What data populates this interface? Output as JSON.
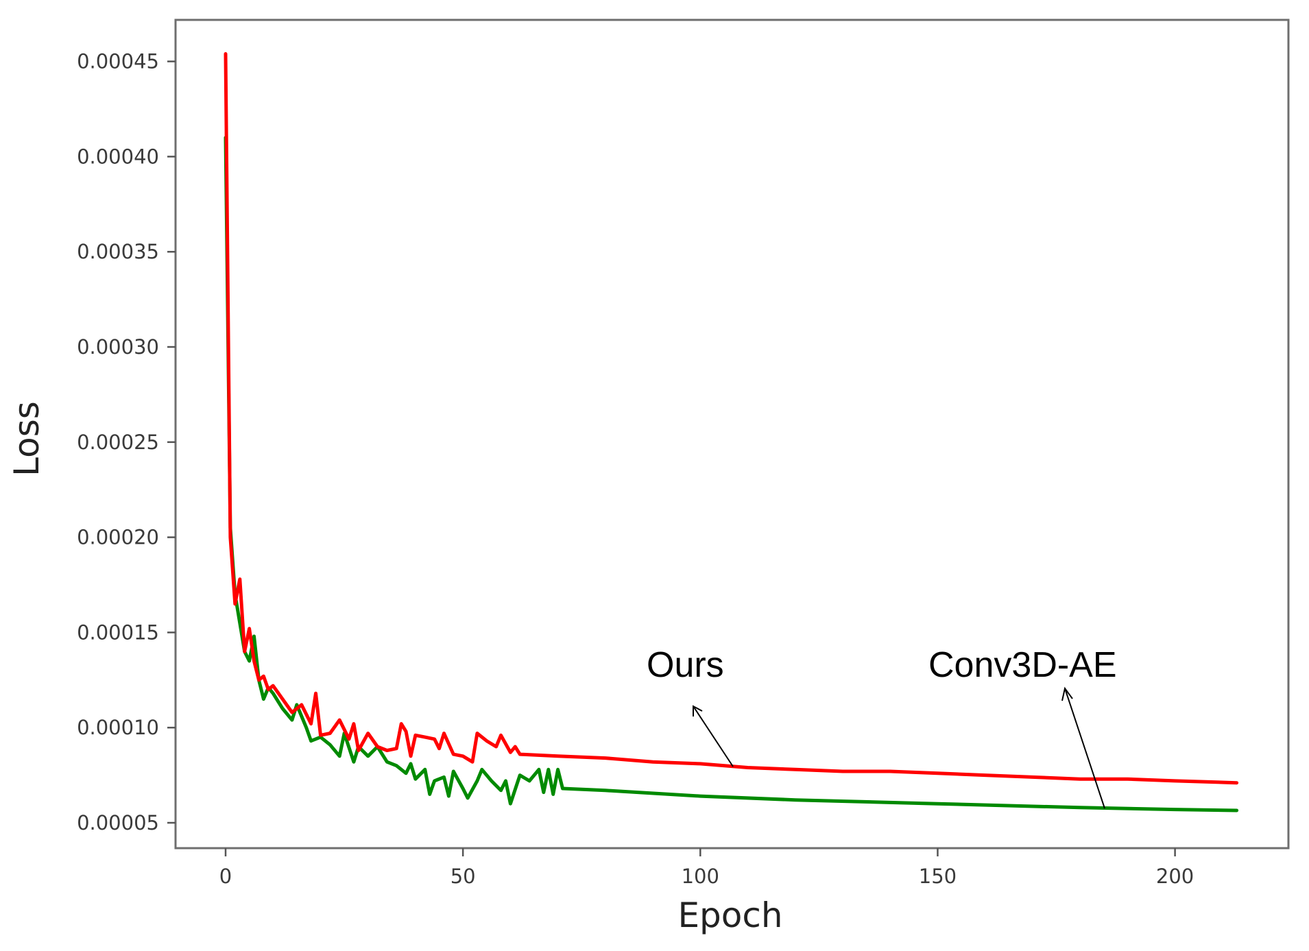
{
  "chart_data": {
    "type": "line",
    "title": "",
    "xlabel": "Epoch",
    "ylabel": "Loss",
    "xlim": [
      -11,
      223
    ],
    "ylim": [
      3.9e-05,
      0.000472
    ],
    "grid": false,
    "legend": "none (inline arrow annotations)",
    "x_ticks": [
      0,
      50,
      100,
      150,
      200
    ],
    "x_tick_labels": [
      "0",
      "50",
      "100",
      "150",
      "200"
    ],
    "y_ticks": [
      5e-05,
      0.0001,
      0.00015,
      0.0002,
      0.00025,
      0.0003,
      0.00035,
      0.0004,
      0.00045
    ],
    "y_tick_labels": [
      "0.00005",
      "0.00010",
      "0.00015",
      "0.00020",
      "0.00025",
      "0.00030",
      "0.00035",
      "0.00040",
      "0.00045"
    ],
    "series": [
      {
        "name": "Ours",
        "color": "#ff0000",
        "x": [
          0,
          1,
          2,
          3,
          4,
          5,
          6,
          7,
          8,
          9,
          10,
          12,
          14,
          16,
          18,
          19,
          20,
          22,
          24,
          26,
          27,
          28,
          30,
          32,
          34,
          36,
          37,
          38,
          39,
          40,
          42,
          44,
          45,
          46,
          48,
          50,
          52,
          53,
          55,
          57,
          58,
          60,
          61,
          62,
          70,
          80,
          90,
          100,
          110,
          120,
          130,
          140,
          150,
          160,
          170,
          180,
          190,
          200,
          213
        ],
        "values": [
          0.000454,
          0.0002,
          0.000165,
          0.000178,
          0.00014,
          0.000152,
          0.000135,
          0.000125,
          0.000127,
          0.00012,
          0.000122,
          0.000115,
          0.000108,
          0.000112,
          0.000102,
          0.000118,
          9.6e-05,
          9.7e-05,
          0.000104,
          9.4e-05,
          0.000102,
          8.8e-05,
          9.7e-05,
          9e-05,
          8.8e-05,
          8.9e-05,
          0.000102,
          9.8e-05,
          8.5e-05,
          9.6e-05,
          9.5e-05,
          9.4e-05,
          8.9e-05,
          9.7e-05,
          8.6e-05,
          8.5e-05,
          8.2e-05,
          9.7e-05,
          9.3e-05,
          9e-05,
          9.6e-05,
          8.7e-05,
          9e-05,
          8.6e-05,
          8.5e-05,
          8.4e-05,
          8.2e-05,
          8.1e-05,
          7.9e-05,
          7.8e-05,
          7.7e-05,
          7.7e-05,
          7.6e-05,
          7.5e-05,
          7.4e-05,
          7.3e-05,
          7.3e-05,
          7.2e-05,
          7.1e-05
        ]
      },
      {
        "name": "Conv3D-AE",
        "color": "#008a00",
        "x": [
          0,
          1,
          2,
          4,
          5,
          6,
          7,
          8,
          9,
          10,
          12,
          14,
          15,
          17,
          18,
          20,
          22,
          24,
          25,
          27,
          28,
          30,
          32,
          34,
          36,
          38,
          39,
          40,
          42,
          43,
          44,
          46,
          47,
          48,
          50,
          51,
          53,
          54,
          56,
          58,
          59,
          60,
          62,
          64,
          66,
          67,
          68,
          69,
          70,
          71,
          80,
          100,
          120,
          150,
          180,
          200,
          213
        ],
        "values": [
          0.00041,
          0.000205,
          0.00017,
          0.00014,
          0.000135,
          0.000148,
          0.000125,
          0.000115,
          0.000121,
          0.000118,
          0.00011,
          0.000104,
          0.000112,
          0.0001,
          9.3e-05,
          9.5e-05,
          9.1e-05,
          8.5e-05,
          9.7e-05,
          8.2e-05,
          9e-05,
          8.5e-05,
          9e-05,
          8.2e-05,
          8e-05,
          7.6e-05,
          8.1e-05,
          7.3e-05,
          7.8e-05,
          6.5e-05,
          7.2e-05,
          7.4e-05,
          6.4e-05,
          7.7e-05,
          6.8e-05,
          6.3e-05,
          7.2e-05,
          7.8e-05,
          7.2e-05,
          6.7e-05,
          7.2e-05,
          6e-05,
          7.5e-05,
          7.2e-05,
          7.8e-05,
          6.6e-05,
          7.8e-05,
          6.5e-05,
          7.8e-05,
          6.8e-05,
          6.7e-05,
          6.4e-05,
          6.2e-05,
          6e-05,
          5.8e-05,
          5.7e-05,
          5.65e-05
        ]
      }
    ],
    "annotations": [
      {
        "text": "Ours",
        "points_to_series": "Ours",
        "arrow_tail_epoch": 108,
        "arrow_tail_value": 7.9e-05
      },
      {
        "text": "Conv3D-AE",
        "points_to_series": "Conv3D-AE",
        "arrow_tail_epoch": 186,
        "arrow_tail_value": 5.8e-05
      }
    ]
  }
}
